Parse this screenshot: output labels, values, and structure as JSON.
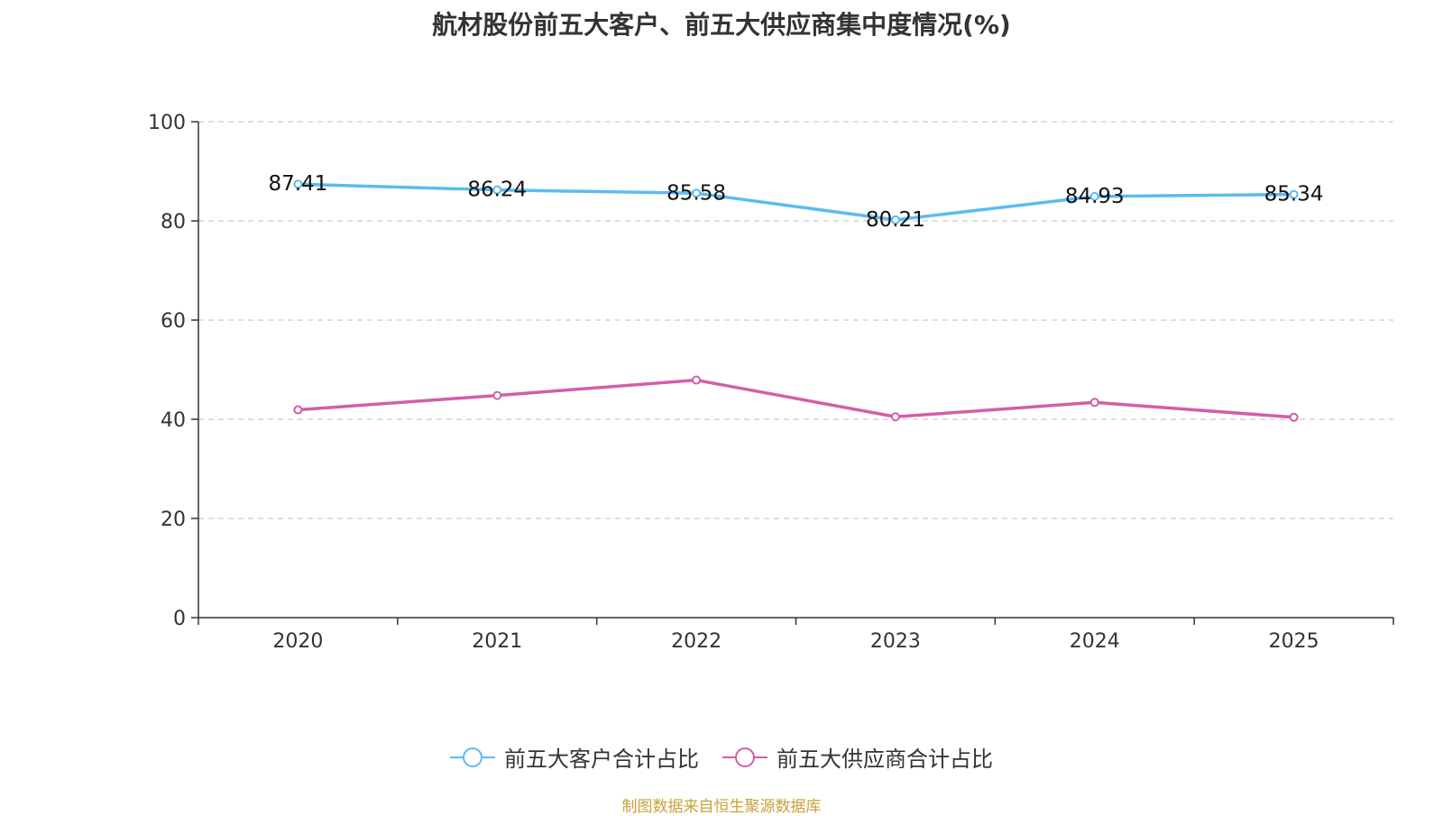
{
  "chart_data": {
    "type": "line",
    "title": "航材股份前五大客户、前五大供应商集中度情况(%)",
    "categories": [
      "2020",
      "2021",
      "2022",
      "2023",
      "2024",
      "2025"
    ],
    "ylim": [
      0,
      100
    ],
    "yticks": [
      "0",
      "20",
      "40",
      "60",
      "80",
      "100"
    ],
    "grid": true,
    "legend_position": "bottom",
    "series": [
      {
        "name": "前五大客户合计占比",
        "color": "#5bbcef",
        "values": [
          87.41,
          86.24,
          85.58,
          80.21,
          84.93,
          85.34
        ],
        "labels": [
          "87.41",
          "86.24",
          "85.58",
          "80.21",
          "84.93",
          "85.34"
        ],
        "show_labels": true
      },
      {
        "name": "前五大供应商合计占比",
        "color": "#d25ea8",
        "values": [
          41.9,
          44.8,
          47.9,
          40.5,
          43.4,
          40.4
        ],
        "show_labels": false
      }
    ]
  },
  "source_note": "制图数据来自恒生聚源数据库"
}
